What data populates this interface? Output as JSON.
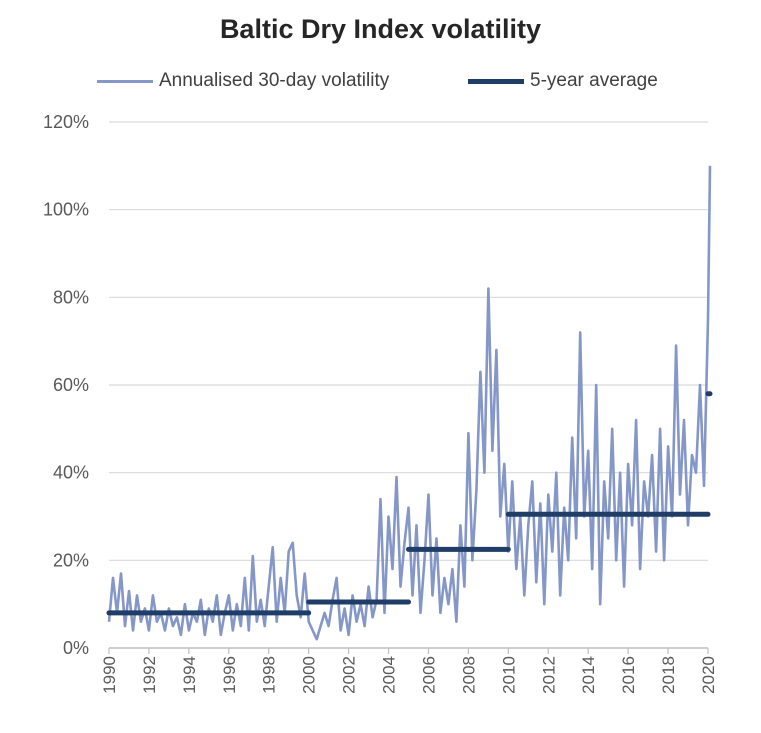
{
  "chart_data": {
    "type": "line",
    "title": "Baltic Dry Index volatility",
    "xlabel": "",
    "ylabel": "",
    "xlim": [
      1990,
      2020
    ],
    "ylim": [
      0,
      120
    ],
    "y_ticks": [
      "0%",
      "20%",
      "40%",
      "60%",
      "80%",
      "100%",
      "120%"
    ],
    "x_ticks": [
      "1990",
      "1992",
      "1994",
      "1996",
      "1998",
      "2000",
      "2002",
      "2004",
      "2006",
      "2008",
      "2010",
      "2012",
      "2014",
      "2016",
      "2018",
      "2020"
    ],
    "grid": "horizontal",
    "legend_position": "top",
    "colors": {
      "volatility": "#8497c8",
      "average": "#1f3d66",
      "grid": "#d9d9d9"
    },
    "series": [
      {
        "name": "Annualised 30-day volatility",
        "style": "thin-line",
        "points": [
          [
            1990.0,
            6
          ],
          [
            1990.2,
            16
          ],
          [
            1990.4,
            8
          ],
          [
            1990.6,
            17
          ],
          [
            1990.8,
            5
          ],
          [
            1991.0,
            13
          ],
          [
            1991.2,
            4
          ],
          [
            1991.4,
            12
          ],
          [
            1991.6,
            6
          ],
          [
            1991.8,
            9
          ],
          [
            1992.0,
            4
          ],
          [
            1992.2,
            12
          ],
          [
            1992.4,
            6
          ],
          [
            1992.6,
            8
          ],
          [
            1992.8,
            4
          ],
          [
            1993.0,
            9
          ],
          [
            1993.2,
            5
          ],
          [
            1993.4,
            7
          ],
          [
            1993.6,
            3
          ],
          [
            1993.8,
            10
          ],
          [
            1994.0,
            4
          ],
          [
            1994.2,
            8
          ],
          [
            1994.4,
            6
          ],
          [
            1994.6,
            11
          ],
          [
            1994.8,
            3
          ],
          [
            1995.0,
            9
          ],
          [
            1995.2,
            6
          ],
          [
            1995.4,
            12
          ],
          [
            1995.6,
            3
          ],
          [
            1995.8,
            8
          ],
          [
            1996.0,
            12
          ],
          [
            1996.2,
            4
          ],
          [
            1996.4,
            10
          ],
          [
            1996.6,
            5
          ],
          [
            1996.8,
            16
          ],
          [
            1997.0,
            4
          ],
          [
            1997.2,
            21
          ],
          [
            1997.4,
            6
          ],
          [
            1997.6,
            11
          ],
          [
            1997.8,
            5
          ],
          [
            1998.0,
            14
          ],
          [
            1998.2,
            23
          ],
          [
            1998.4,
            6
          ],
          [
            1998.6,
            16
          ],
          [
            1998.8,
            8
          ],
          [
            1999.0,
            22
          ],
          [
            1999.2,
            24
          ],
          [
            1999.4,
            12
          ],
          [
            1999.6,
            7
          ],
          [
            1999.8,
            17
          ],
          [
            2000.0,
            6
          ],
          [
            2000.2,
            4
          ],
          [
            2000.4,
            2
          ],
          [
            2000.6,
            5
          ],
          [
            2000.8,
            8
          ],
          [
            2001.0,
            5
          ],
          [
            2001.2,
            11
          ],
          [
            2001.4,
            16
          ],
          [
            2001.6,
            4
          ],
          [
            2001.8,
            9
          ],
          [
            2002.0,
            3
          ],
          [
            2002.2,
            12
          ],
          [
            2002.4,
            6
          ],
          [
            2002.6,
            10
          ],
          [
            2002.8,
            5
          ],
          [
            2003.0,
            14
          ],
          [
            2003.2,
            7
          ],
          [
            2003.4,
            11
          ],
          [
            2003.6,
            34
          ],
          [
            2003.8,
            8
          ],
          [
            2004.0,
            30
          ],
          [
            2004.2,
            18
          ],
          [
            2004.4,
            39
          ],
          [
            2004.6,
            14
          ],
          [
            2004.8,
            24
          ],
          [
            2005.0,
            32
          ],
          [
            2005.2,
            12
          ],
          [
            2005.4,
            28
          ],
          [
            2005.6,
            8
          ],
          [
            2005.8,
            20
          ],
          [
            2006.0,
            35
          ],
          [
            2006.2,
            12
          ],
          [
            2006.4,
            25
          ],
          [
            2006.6,
            8
          ],
          [
            2006.8,
            16
          ],
          [
            2007.0,
            10
          ],
          [
            2007.2,
            18
          ],
          [
            2007.4,
            6
          ],
          [
            2007.6,
            28
          ],
          [
            2007.8,
            14
          ],
          [
            2008.0,
            49
          ],
          [
            2008.2,
            20
          ],
          [
            2008.4,
            36
          ],
          [
            2008.6,
            63
          ],
          [
            2008.8,
            40
          ],
          [
            2009.0,
            82
          ],
          [
            2009.2,
            45
          ],
          [
            2009.4,
            68
          ],
          [
            2009.6,
            30
          ],
          [
            2009.8,
            42
          ],
          [
            2010.0,
            22
          ],
          [
            2010.2,
            38
          ],
          [
            2010.4,
            18
          ],
          [
            2010.6,
            30
          ],
          [
            2010.8,
            12
          ],
          [
            2011.0,
            28
          ],
          [
            2011.2,
            38
          ],
          [
            2011.4,
            15
          ],
          [
            2011.6,
            33
          ],
          [
            2011.8,
            10
          ],
          [
            2012.0,
            35
          ],
          [
            2012.2,
            22
          ],
          [
            2012.4,
            40
          ],
          [
            2012.6,
            12
          ],
          [
            2012.8,
            32
          ],
          [
            2013.0,
            20
          ],
          [
            2013.2,
            48
          ],
          [
            2013.4,
            25
          ],
          [
            2013.6,
            72
          ],
          [
            2013.8,
            30
          ],
          [
            2014.0,
            45
          ],
          [
            2014.2,
            18
          ],
          [
            2014.4,
            60
          ],
          [
            2014.6,
            10
          ],
          [
            2014.8,
            38
          ],
          [
            2015.0,
            25
          ],
          [
            2015.2,
            50
          ],
          [
            2015.4,
            20
          ],
          [
            2015.6,
            40
          ],
          [
            2015.8,
            14
          ],
          [
            2016.0,
            42
          ],
          [
            2016.2,
            28
          ],
          [
            2016.4,
            52
          ],
          [
            2016.6,
            18
          ],
          [
            2016.8,
            38
          ],
          [
            2017.0,
            30
          ],
          [
            2017.2,
            44
          ],
          [
            2017.4,
            22
          ],
          [
            2017.6,
            50
          ],
          [
            2017.8,
            20
          ],
          [
            2018.0,
            46
          ],
          [
            2018.2,
            30
          ],
          [
            2018.4,
            69
          ],
          [
            2018.6,
            35
          ],
          [
            2018.8,
            52
          ],
          [
            2019.0,
            28
          ],
          [
            2019.2,
            44
          ],
          [
            2019.4,
            40
          ],
          [
            2019.6,
            60
          ],
          [
            2019.8,
            37
          ],
          [
            2020.0,
            75
          ],
          [
            2020.1,
            110
          ]
        ]
      },
      {
        "name": "5-year average",
        "style": "step",
        "segments": [
          {
            "from": 1990,
            "to": 2000,
            "value": 8.0
          },
          {
            "from": 2000,
            "to": 2005,
            "value": 10.5
          },
          {
            "from": 2005,
            "to": 2010,
            "value": 22.5
          },
          {
            "from": 2010,
            "to": 2020,
            "value": 30.5
          },
          {
            "from": 2020,
            "to": 2020.1,
            "value": 58
          }
        ]
      }
    ]
  }
}
